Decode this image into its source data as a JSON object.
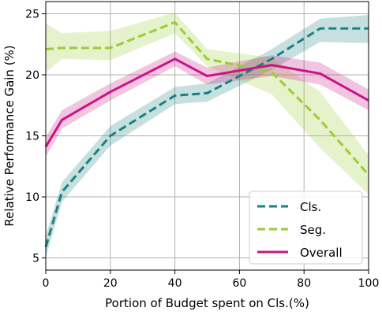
{
  "chart_data": {
    "type": "line",
    "xlabel": "Portion of Budget spent on Cls.(%)",
    "ylabel": "Relative Performance Gain (%)",
    "xlim": [
      0,
      100
    ],
    "ylim": [
      4,
      26
    ],
    "xticks": [
      0,
      20,
      40,
      60,
      80,
      100
    ],
    "yticks": [
      5,
      10,
      15,
      20,
      25
    ],
    "grid": true,
    "legend_position": "bottom-right",
    "x": [
      0,
      5,
      20,
      40,
      50,
      70,
      85,
      100
    ],
    "series": [
      {
        "name": "Cls.",
        "color": "#1a8080",
        "dash": "dashed",
        "values": [
          5.9,
          10.4,
          15.0,
          18.3,
          18.5,
          21.3,
          23.8,
          23.8
        ],
        "lower": [
          5.0,
          9.6,
          14.2,
          17.6,
          17.8,
          20.4,
          22.7,
          22.6
        ],
        "upper": [
          6.8,
          11.2,
          15.8,
          19.0,
          19.3,
          22.1,
          24.6,
          24.9
        ]
      },
      {
        "name": "Seg.",
        "color": "#9acd32",
        "dash": "dashed",
        "values": [
          22.1,
          22.2,
          22.2,
          24.3,
          21.3,
          20.2,
          16.3,
          11.8
        ],
        "lower": [
          20.2,
          21.3,
          21.2,
          23.4,
          20.7,
          18.4,
          14.0,
          10.2
        ],
        "upper": [
          24.2,
          23.4,
          23.6,
          25.1,
          22.1,
          21.4,
          18.6,
          13.4
        ]
      },
      {
        "name": "Overall",
        "color": "#c71585",
        "dash": "solid",
        "values": [
          14.1,
          16.3,
          18.6,
          21.3,
          19.9,
          20.8,
          20.1,
          17.9
        ],
        "lower": [
          13.3,
          15.6,
          17.9,
          20.7,
          19.2,
          19.9,
          19.2,
          17.1
        ],
        "upper": [
          14.9,
          17.1,
          19.3,
          21.9,
          20.6,
          21.6,
          21.0,
          18.8
        ]
      }
    ]
  }
}
